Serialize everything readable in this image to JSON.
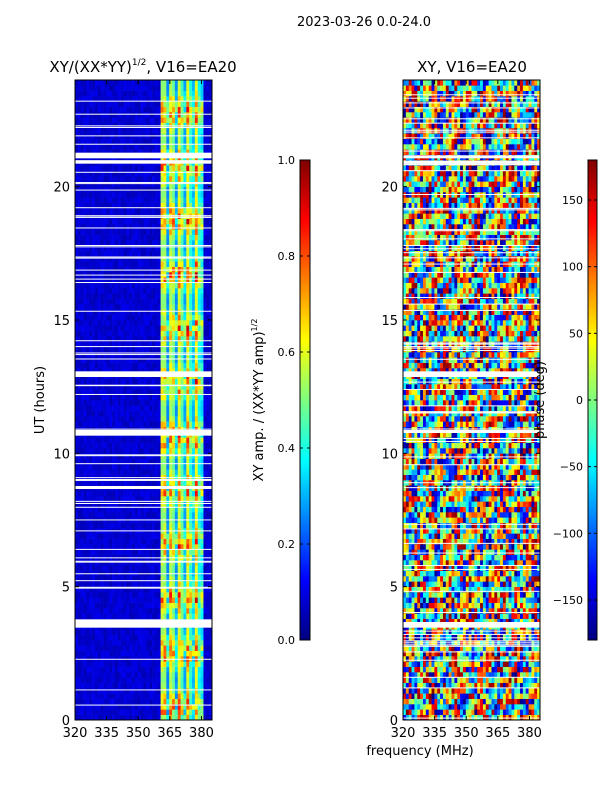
{
  "suptitle": "2023-03-26 0.0-24.0",
  "xlabel_shared": "frequency (MHz)",
  "chart_data": [
    {
      "type": "heatmap",
      "title_main": "XY/(XX*YY)",
      "title_exp": "1/2",
      "title_tail": ", V16=EA20",
      "ylabel": "UT (hours)",
      "x_range": [
        320,
        385
      ],
      "y_range": [
        0,
        24
      ],
      "xticks": [
        320,
        335,
        350,
        365,
        380
      ],
      "xtick_labels": [
        "320",
        "335",
        "350",
        "365",
        "380"
      ],
      "yticks": [
        0,
        5,
        10,
        15,
        20
      ],
      "ytick_labels": [
        "0",
        "5",
        "10",
        "15",
        "20"
      ],
      "colorbar": {
        "label_main": "XY amp. / (XX*YY amp)",
        "label_exp": "1/2",
        "range": [
          0.0,
          1.0
        ],
        "ticks": [
          0.0,
          0.2,
          0.4,
          0.6,
          0.8,
          1.0
        ],
        "tick_labels": [
          "0.0",
          "0.2",
          "0.4",
          "0.6",
          "0.8",
          "1.0"
        ],
        "colormap": "jet"
      },
      "active_freq_band_mhz": [
        361,
        381
      ],
      "gap_hours": [
        3.5,
        3.6,
        3.7,
        8.7,
        10.7,
        10.8,
        12.9,
        13.0,
        20.9,
        21.1,
        21.2
      ]
    },
    {
      "type": "heatmap",
      "title": "XY, V16=EA20",
      "x_range": [
        320,
        385
      ],
      "y_range": [
        0,
        24
      ],
      "xticks": [
        320,
        335,
        350,
        365,
        380
      ],
      "xtick_labels": [
        "320",
        "335",
        "350",
        "365",
        "380"
      ],
      "yticks": [
        0,
        5,
        10,
        15,
        20
      ],
      "ytick_labels": [
        "0",
        "5",
        "10",
        "15",
        "20"
      ],
      "colorbar": {
        "label": "phase (deg)",
        "range": [
          -180,
          180
        ],
        "ticks": [
          -150,
          -100,
          -50,
          0,
          50,
          100,
          150
        ],
        "tick_labels": [
          "−150",
          "−100",
          "−50",
          "0",
          "50",
          "100",
          "150"
        ],
        "colormap": "jet"
      },
      "gap_hours": [
        3.5,
        3.6,
        10.8,
        12.9,
        13.0,
        20.9,
        21.1
      ]
    }
  ]
}
